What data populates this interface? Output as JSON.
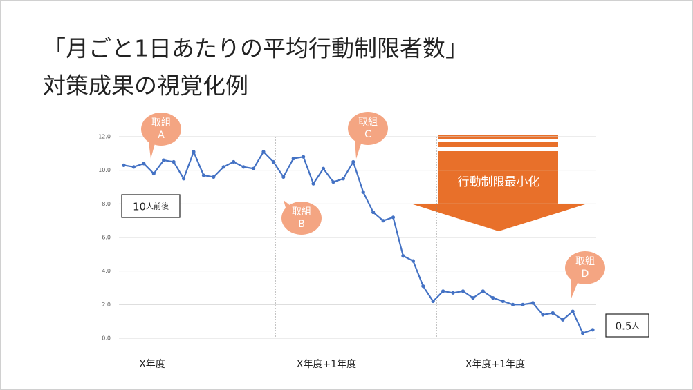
{
  "chart_data": {
    "type": "line",
    "title_lines": [
      "「月ごと1日あたりの平均行動制限者数」",
      "対策成果の視覚化例"
    ],
    "categories": [
      null,
      null,
      null,
      null,
      null,
      null,
      null,
      null,
      null,
      null,
      null,
      null,
      null,
      null,
      null,
      null,
      null,
      null,
      null,
      null,
      null,
      null,
      null,
      null,
      null,
      null,
      null,
      null,
      null,
      null,
      null,
      null,
      null,
      null,
      null,
      null,
      null,
      null,
      null,
      null,
      null,
      null,
      null,
      null,
      null,
      null,
      null,
      null
    ],
    "series": [
      {
        "color": "#4472c4",
        "values": [
          10.3,
          10.2,
          10.4,
          9.8,
          10.6,
          10.5,
          9.5,
          11.1,
          9.7,
          9.6,
          10.2,
          10.5,
          10.2,
          10.1,
          11.1,
          10.5,
          9.6,
          10.7,
          10.8,
          9.2,
          10.1,
          9.3,
          9.5,
          10.5,
          8.7,
          7.5,
          7.0,
          7.2,
          4.9,
          4.6,
          3.1,
          2.2,
          2.8,
          2.7,
          2.8,
          2.4,
          2.8,
          2.4,
          2.2,
          2.0,
          2.0,
          2.1,
          1.4,
          1.5,
          1.1,
          1.6,
          0.3,
          0.5
        ]
      }
    ],
    "ylim": [
      0,
      12
    ],
    "yticks": [
      {
        "value": 0,
        "label": "0.0"
      },
      {
        "value": 2,
        "label": "2.0"
      },
      {
        "value": 4,
        "label": "4.0"
      },
      {
        "value": 6,
        "label": "6.0"
      },
      {
        "value": 8,
        "label": "8.0"
      },
      {
        "value": 10,
        "label": "10.0"
      },
      {
        "value": 12,
        "label": "12.0"
      }
    ],
    "grid": true,
    "group_labels": [
      "X年度",
      "X年度+1年度",
      "X年度+1年度"
    ],
    "callouts": [
      [
        "取組",
        "A"
      ],
      [
        "取組",
        "B"
      ],
      [
        "取組",
        "C"
      ],
      [
        "取組",
        "D"
      ]
    ],
    "boxes": [
      [
        "10",
        "人前後"
      ],
      [
        "0.5",
        "人"
      ]
    ],
    "arrow_label": "行動制限最小化"
  }
}
